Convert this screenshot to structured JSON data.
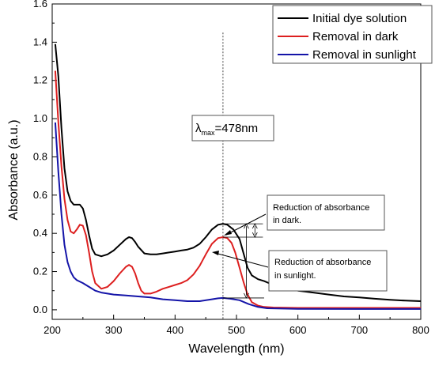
{
  "chart_data": {
    "type": "line",
    "xlabel": "Wavelength (nm)",
    "ylabel": "Absorbance (a.u.)",
    "xlim": [
      200,
      800
    ],
    "ylim": [
      -0.05,
      1.6
    ],
    "x_ticks": [
      "200",
      "300",
      "400",
      "500",
      "600",
      "700",
      "800"
    ],
    "y_ticks": [
      "0.0",
      "0.2",
      "0.4",
      "0.6",
      "0.8",
      "1.0",
      "1.2",
      "1.4",
      "1.6"
    ],
    "grid": false,
    "legend_position": "top-right",
    "series": [
      {
        "name": "Initial dye solution",
        "color": "#000000",
        "points": [
          [
            205,
            1.39
          ],
          [
            210,
            1.22
          ],
          [
            215,
            0.95
          ],
          [
            220,
            0.74
          ],
          [
            225,
            0.62
          ],
          [
            230,
            0.57
          ],
          [
            235,
            0.55
          ],
          [
            240,
            0.55
          ],
          [
            245,
            0.55
          ],
          [
            250,
            0.53
          ],
          [
            255,
            0.47
          ],
          [
            260,
            0.39
          ],
          [
            265,
            0.32
          ],
          [
            270,
            0.29
          ],
          [
            280,
            0.28
          ],
          [
            290,
            0.29
          ],
          [
            300,
            0.31
          ],
          [
            310,
            0.34
          ],
          [
            320,
            0.37
          ],
          [
            325,
            0.38
          ],
          [
            330,
            0.375
          ],
          [
            335,
            0.355
          ],
          [
            340,
            0.33
          ],
          [
            350,
            0.295
          ],
          [
            360,
            0.29
          ],
          [
            370,
            0.29
          ],
          [
            380,
            0.295
          ],
          [
            390,
            0.3
          ],
          [
            400,
            0.305
          ],
          [
            410,
            0.31
          ],
          [
            420,
            0.315
          ],
          [
            430,
            0.325
          ],
          [
            440,
            0.345
          ],
          [
            450,
            0.38
          ],
          [
            460,
            0.42
          ],
          [
            470,
            0.445
          ],
          [
            478,
            0.45
          ],
          [
            485,
            0.445
          ],
          [
            495,
            0.42
          ],
          [
            505,
            0.37
          ],
          [
            512,
            0.29
          ],
          [
            518,
            0.22
          ],
          [
            525,
            0.18
          ],
          [
            535,
            0.16
          ],
          [
            545,
            0.15
          ],
          [
            560,
            0.13
          ],
          [
            580,
            0.115
          ],
          [
            600,
            0.1
          ],
          [
            625,
            0.09
          ],
          [
            650,
            0.08
          ],
          [
            675,
            0.07
          ],
          [
            700,
            0.065
          ],
          [
            725,
            0.058
          ],
          [
            750,
            0.052
          ],
          [
            775,
            0.048
          ],
          [
            800,
            0.045
          ]
        ]
      },
      {
        "name": "Removal in dark",
        "color": "#dd1f1f",
        "points": [
          [
            205,
            1.25
          ],
          [
            210,
            0.98
          ],
          [
            215,
            0.75
          ],
          [
            220,
            0.58
          ],
          [
            225,
            0.47
          ],
          [
            230,
            0.41
          ],
          [
            235,
            0.4
          ],
          [
            240,
            0.42
          ],
          [
            245,
            0.445
          ],
          [
            250,
            0.44
          ],
          [
            255,
            0.39
          ],
          [
            260,
            0.3
          ],
          [
            265,
            0.2
          ],
          [
            270,
            0.14
          ],
          [
            280,
            0.11
          ],
          [
            290,
            0.12
          ],
          [
            300,
            0.15
          ],
          [
            310,
            0.19
          ],
          [
            320,
            0.225
          ],
          [
            325,
            0.235
          ],
          [
            330,
            0.225
          ],
          [
            335,
            0.19
          ],
          [
            340,
            0.14
          ],
          [
            345,
            0.1
          ],
          [
            350,
            0.085
          ],
          [
            360,
            0.085
          ],
          [
            370,
            0.095
          ],
          [
            380,
            0.11
          ],
          [
            390,
            0.12
          ],
          [
            400,
            0.13
          ],
          [
            410,
            0.14
          ],
          [
            420,
            0.155
          ],
          [
            430,
            0.185
          ],
          [
            440,
            0.23
          ],
          [
            450,
            0.29
          ],
          [
            460,
            0.345
          ],
          [
            470,
            0.375
          ],
          [
            478,
            0.38
          ],
          [
            485,
            0.375
          ],
          [
            492,
            0.35
          ],
          [
            498,
            0.3
          ],
          [
            505,
            0.22
          ],
          [
            512,
            0.14
          ],
          [
            518,
            0.08
          ],
          [
            525,
            0.04
          ],
          [
            535,
            0.022
          ],
          [
            545,
            0.015
          ],
          [
            560,
            0.012
          ],
          [
            600,
            0.01
          ],
          [
            700,
            0.01
          ],
          [
            800,
            0.01
          ]
        ]
      },
      {
        "name": "Removal in sunlight",
        "color": "#1414a8",
        "points": [
          [
            205,
            0.98
          ],
          [
            210,
            0.72
          ],
          [
            215,
            0.5
          ],
          [
            220,
            0.34
          ],
          [
            225,
            0.25
          ],
          [
            230,
            0.2
          ],
          [
            235,
            0.17
          ],
          [
            240,
            0.155
          ],
          [
            250,
            0.14
          ],
          [
            260,
            0.12
          ],
          [
            270,
            0.1
          ],
          [
            280,
            0.09
          ],
          [
            290,
            0.085
          ],
          [
            300,
            0.08
          ],
          [
            320,
            0.075
          ],
          [
            340,
            0.07
          ],
          [
            360,
            0.065
          ],
          [
            380,
            0.055
          ],
          [
            400,
            0.05
          ],
          [
            420,
            0.045
          ],
          [
            440,
            0.045
          ],
          [
            460,
            0.055
          ],
          [
            470,
            0.06
          ],
          [
            478,
            0.062
          ],
          [
            490,
            0.058
          ],
          [
            505,
            0.05
          ],
          [
            520,
            0.03
          ],
          [
            535,
            0.015
          ],
          [
            550,
            0.008
          ],
          [
            600,
            0.005
          ],
          [
            700,
            0.004
          ],
          [
            800,
            0.004
          ]
        ]
      }
    ],
    "annotations": {
      "lambda_max": {
        "x": 478,
        "symbol": "λ",
        "subscript": "max",
        "text": "=478nm"
      },
      "dark_note": {
        "lines": [
          "Reduction of absorbance",
          "in dark."
        ],
        "y_from": 0.45,
        "y_to": 0.38
      },
      "sunlight_note": {
        "lines": [
          "Reduction of absorbance",
          "in sunlight."
        ],
        "y_from": 0.45,
        "y_to": 0.062
      }
    }
  }
}
